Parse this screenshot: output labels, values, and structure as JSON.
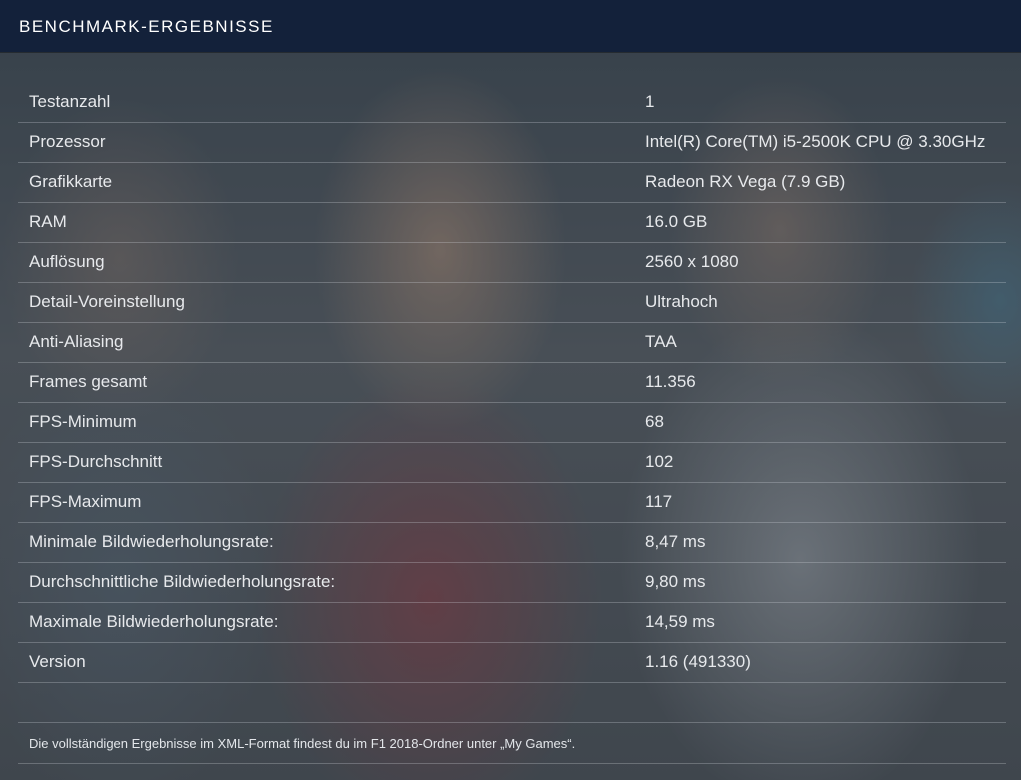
{
  "header": {
    "title": "BENCHMARK-ERGEBNISSE"
  },
  "results": [
    {
      "label": "Testanzahl",
      "value": "1"
    },
    {
      "label": "Prozessor",
      "value": "Intel(R) Core(TM) i5-2500K CPU @ 3.30GHz"
    },
    {
      "label": "Grafikkarte",
      "value": "Radeon RX Vega (7.9 GB)"
    },
    {
      "label": "RAM",
      "value": "16.0 GB"
    },
    {
      "label": "Auflösung",
      "value": "2560 x 1080"
    },
    {
      "label": "Detail-Voreinstellung",
      "value": "Ultrahoch"
    },
    {
      "label": "Anti-Aliasing",
      "value": "TAA"
    },
    {
      "label": "Frames gesamt",
      "value": "11.356"
    },
    {
      "label": "FPS-Minimum",
      "value": "68"
    },
    {
      "label": "FPS-Durchschnitt",
      "value": "102"
    },
    {
      "label": "FPS-Maximum",
      "value": "117"
    },
    {
      "label": "Minimale Bildwiederholungsrate:",
      "value": "8,47 ms"
    },
    {
      "label": "Durchschnittliche Bildwiederholungsrate:",
      "value": "9,80 ms"
    },
    {
      "label": "Maximale Bildwiederholungsrate:",
      "value": "14,59 ms"
    },
    {
      "label": "Version",
      "value": "1.16 (491330)"
    }
  ],
  "footer": {
    "note": "Die vollständigen Ergebnisse im XML-Format findest du im F1 2018-Ordner unter „My Games“."
  },
  "colors": {
    "header_bg": "#13213a",
    "text": "#e7e9ec"
  }
}
